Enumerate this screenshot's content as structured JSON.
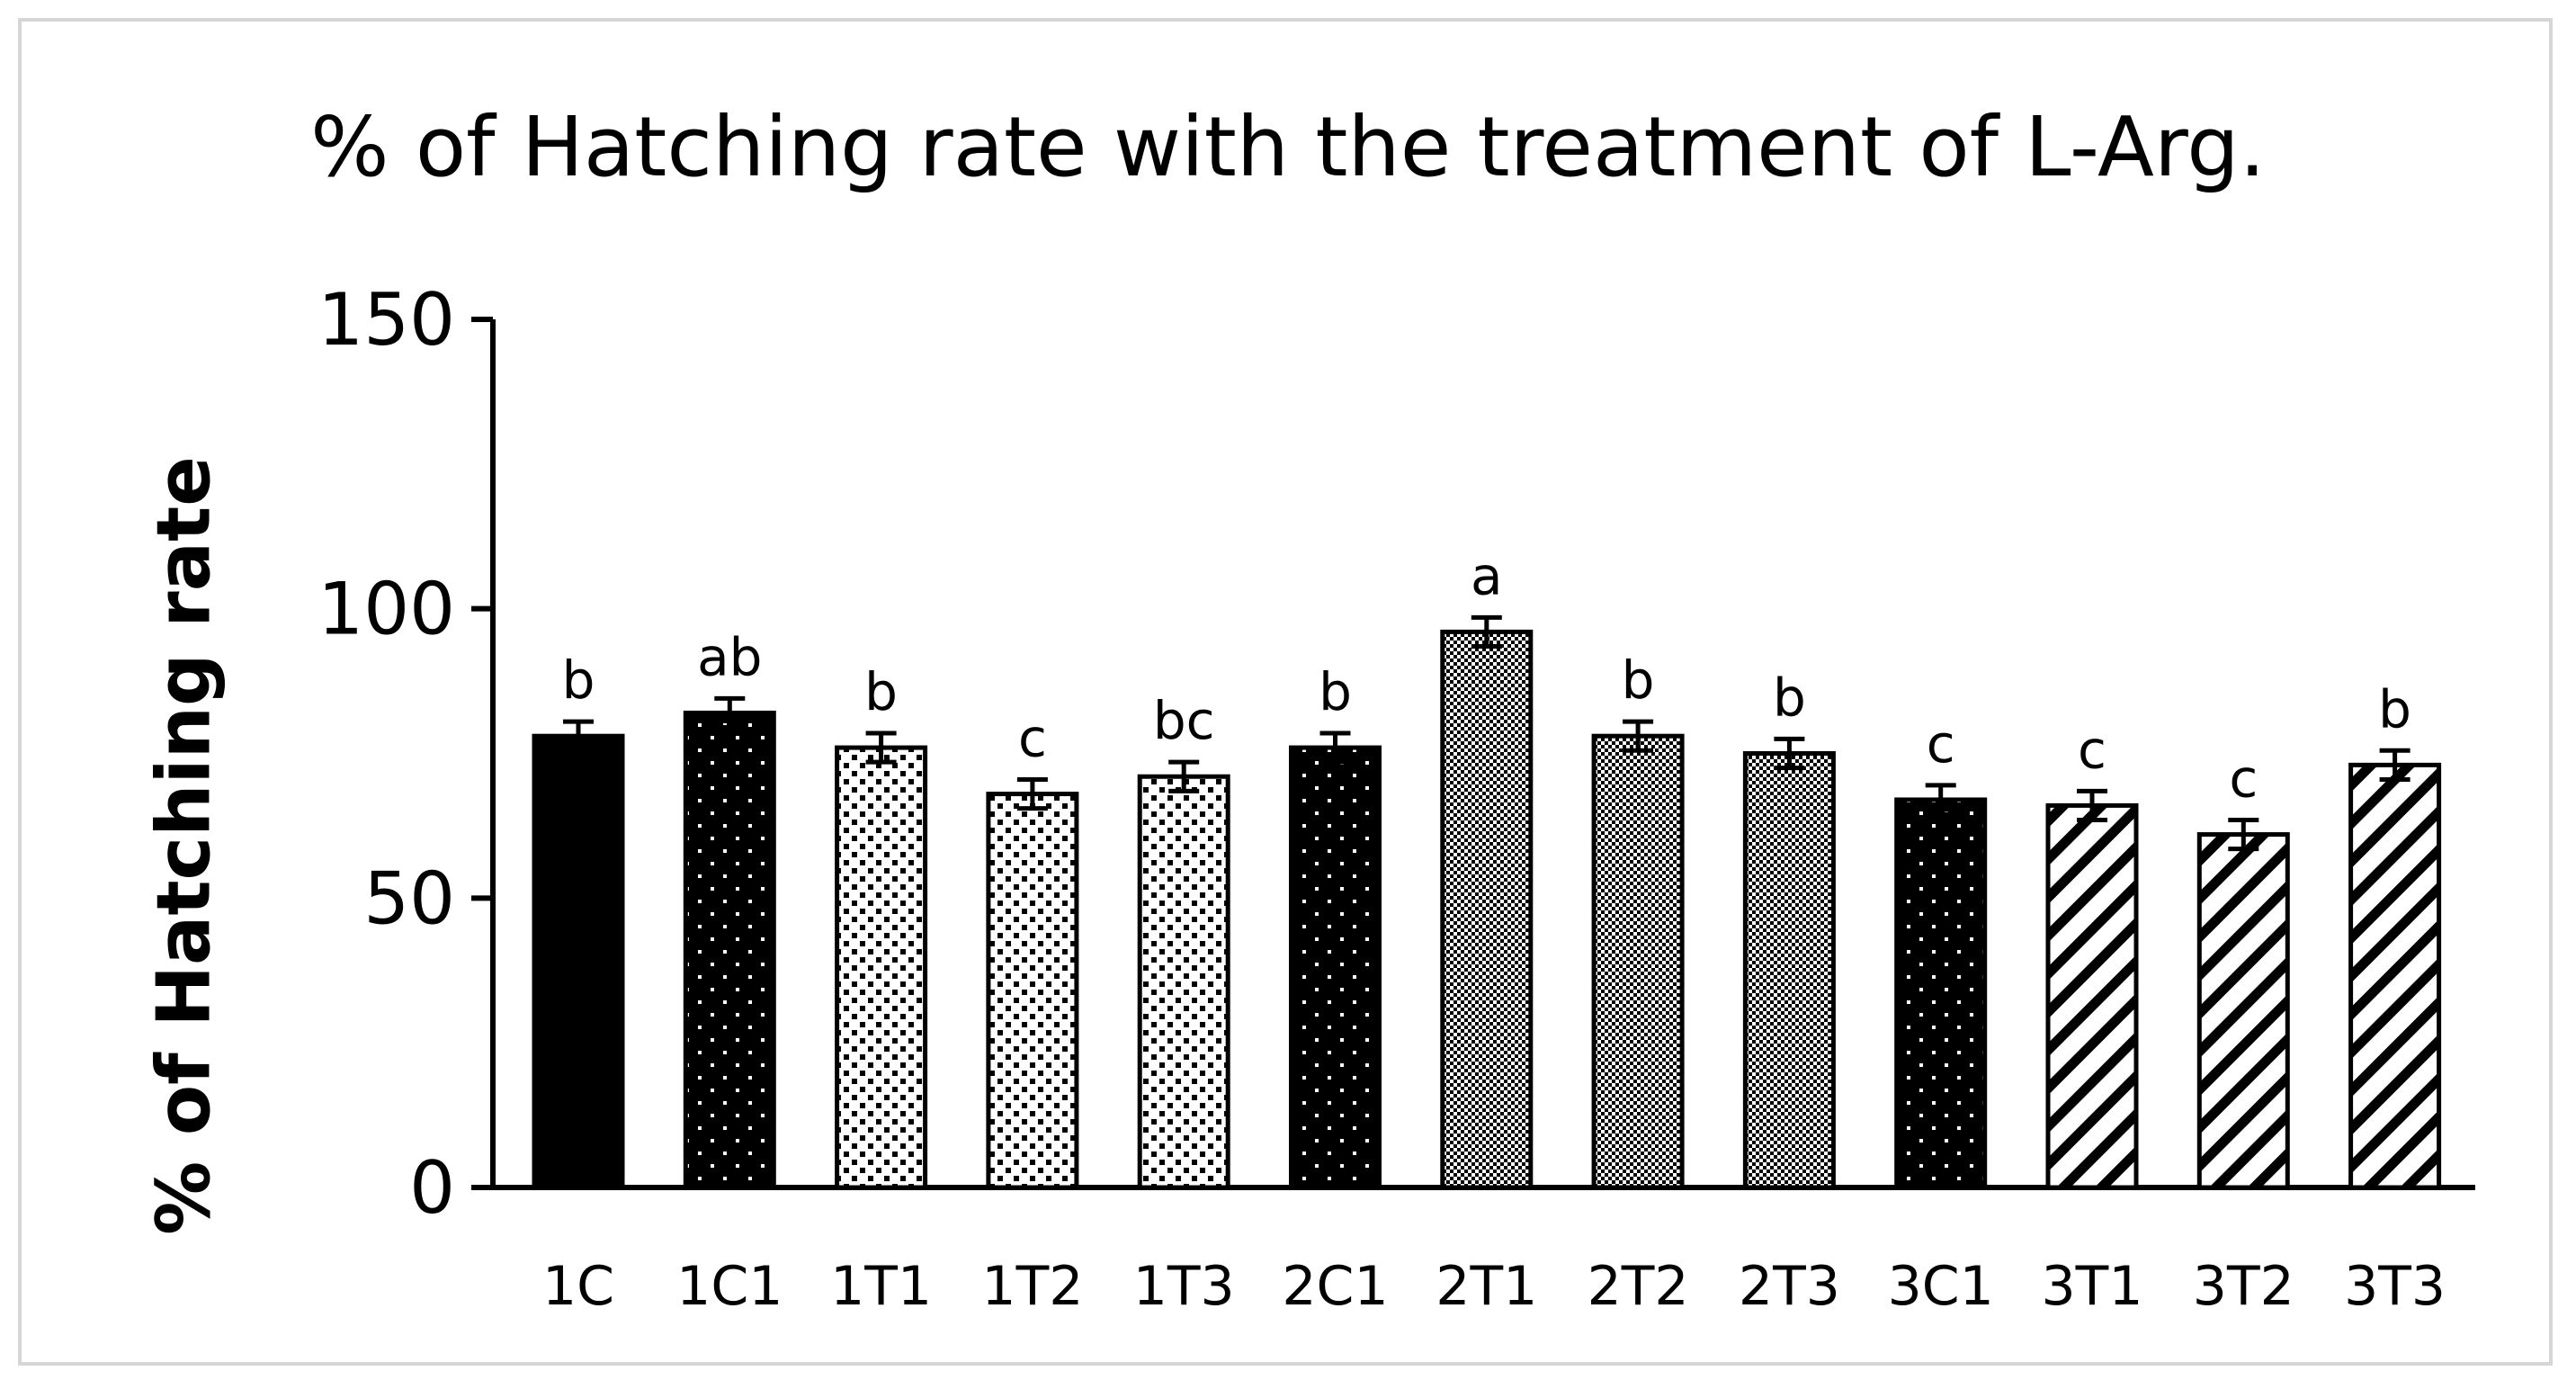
{
  "chart_data": {
    "type": "bar",
    "title": "% of Hatching rate with the treatment of L-Arg.",
    "xlabel": "",
    "ylabel": "% of Hatching rate",
    "ylim": [
      0,
      150
    ],
    "yticks": [
      "0",
      "50",
      "100",
      "150"
    ],
    "grid": false,
    "legend": "none",
    "categories": [
      "1C",
      "1C1",
      "1T1",
      "1T2",
      "1T3",
      "2C1",
      "2T1",
      "2T2",
      "2T3",
      "3C1",
      "3T1",
      "3T2",
      "3T3"
    ],
    "values": [
      78,
      82,
      76,
      68,
      71,
      76,
      96,
      78,
      75,
      67,
      66,
      61,
      73
    ],
    "errors": [
      2.5,
      2.5,
      2.5,
      2.5,
      2.5,
      2.5,
      2.5,
      2.5,
      2.5,
      2.5,
      2.5,
      2.5,
      2.5
    ],
    "significance": [
      "b",
      "ab",
      "b",
      "c",
      "bc",
      "b",
      "a",
      "b",
      "b",
      "c",
      "c",
      "c",
      "b"
    ],
    "patterns": [
      "solid",
      "dots",
      "squares",
      "squares",
      "squares",
      "dots",
      "checker",
      "checker",
      "checker",
      "dots",
      "stripes",
      "stripes",
      "stripes"
    ],
    "colors": {
      "bar_fill": "#000000",
      "pattern_bg": "#ffffff",
      "axis": "#000000"
    }
  }
}
